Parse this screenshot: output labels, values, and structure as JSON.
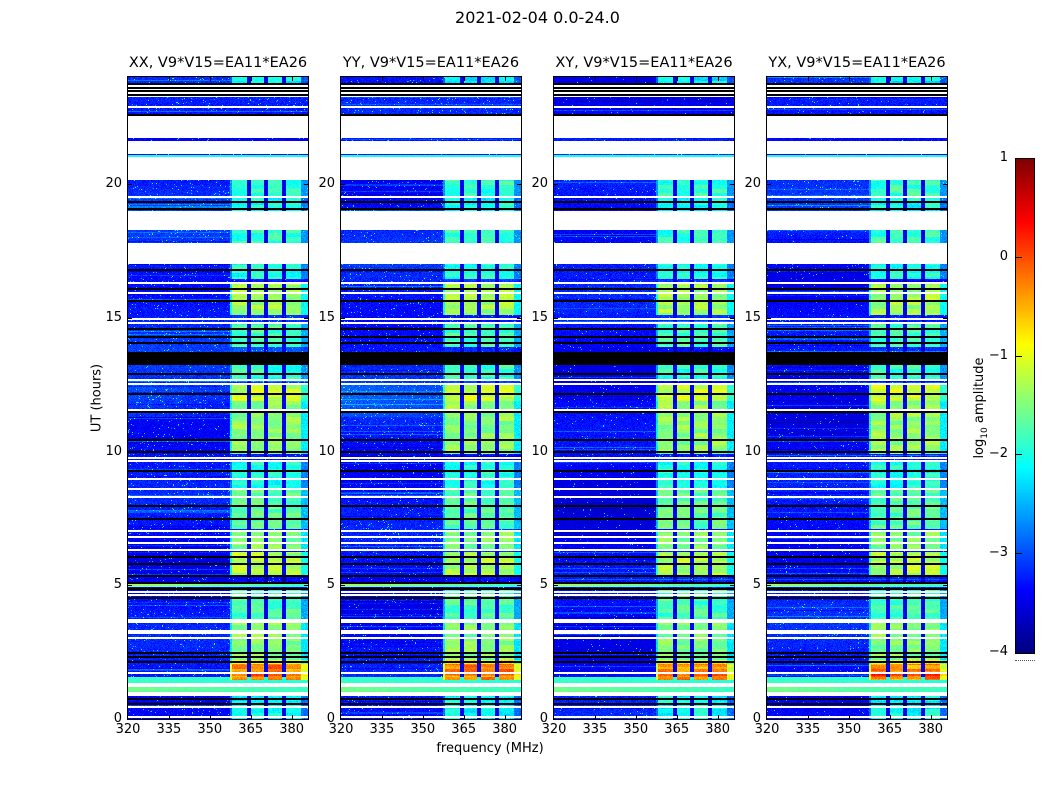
{
  "chart_data": {
    "type": "heatmap",
    "title": "2021-02-04 0.0-24.0",
    "xlabel": "frequency (MHz)",
    "ylabel": "UT (hours)",
    "x_range": [
      320,
      386
    ],
    "x_ticks": [
      320,
      335,
      350,
      365,
      380
    ],
    "y_range": [
      0,
      24
    ],
    "y_ticks": [
      20,
      15,
      10,
      5,
      0
    ],
    "grid": false,
    "colorbar": {
      "cmap": "jet",
      "vmin": -4,
      "vmax": 1,
      "ticks": [
        "1",
        "0",
        "−1",
        "−2",
        "−3",
        "−4"
      ],
      "tick_values": [
        1,
        0,
        -1,
        -2,
        -3,
        -4
      ],
      "label_log": "log",
      "label_sub": "10",
      "label_amp": " amplitude"
    },
    "panels": [
      {
        "id": "XX",
        "title": "XX, V9*V15=EA11*EA26",
        "seed": 11,
        "bg": -3.28,
        "speckle": 0.972,
        "patch_amp": 0.3
      },
      {
        "id": "YY",
        "title": "YY, V9*V15=EA11*EA26",
        "seed": 23,
        "bg": -3.3,
        "speckle": 0.974,
        "patch_amp": 0.25
      },
      {
        "id": "XY",
        "title": "XY, V9*V15=EA11*EA26",
        "seed": 37,
        "bg": -3.38,
        "speckle": 0.985,
        "patch_amp": 0.05
      },
      {
        "id": "YX",
        "title": "YX, V9*V15=EA11*EA26",
        "seed": 51,
        "bg": -3.34,
        "speckle": 0.982,
        "patch_amp": 0.1
      }
    ],
    "structure": {
      "comment_units": "all times in UT hours; frequencies in MHz; levels in log10 amplitude",
      "white_bands": [
        [
          23.25,
          23.7
        ],
        [
          21.72,
          22.58
        ],
        [
          21.12,
          21.6
        ],
        [
          20.15,
          21.0
        ],
        [
          18.28,
          19.0
        ],
        [
          17.0,
          17.8
        ],
        [
          12.49,
          12.56
        ],
        [
          12.64,
          12.71
        ],
        [
          3.59,
          3.74
        ],
        [
          3.18,
          3.33
        ],
        [
          1.2,
          1.35
        ],
        [
          0.86,
          1.01
        ]
      ],
      "white_lines": [
        22.9,
        19.54,
        16.35,
        15.95,
        15.0,
        14.85,
        11.6,
        9.8,
        9.7,
        9.0,
        8.65,
        8.35,
        7.05,
        6.85,
        6.6,
        6.35,
        4.78,
        4.66,
        3.05,
        1.76,
        0.5,
        0.12
      ],
      "black_band": [
        13.23,
        13.72
      ],
      "black_lines": [
        23.78,
        23.62,
        23.5,
        23.38,
        22.62,
        19.35,
        19.1,
        16.82,
        16.1,
        15.65,
        14.6,
        14.3,
        14.1,
        12.95,
        12.2,
        11.5,
        10.45,
        10.0,
        9.3,
        8.0,
        7.5,
        6.1,
        5.83,
        5.38,
        5.12,
        4.9,
        4.55,
        2.5,
        2.36,
        2.17,
        0.79,
        0.6
      ],
      "bright_rows": [
        [
          21.0,
          21.1,
          -2.0,
          0.0
        ],
        [
          4.92,
          5.1,
          -1.85,
          0.5
        ],
        [
          1.35,
          1.57,
          -1.95,
          0.1
        ],
        [
          1.01,
          1.2,
          -1.85,
          0.3
        ]
      ],
      "patch_band": [
        11.3,
        12.55
      ],
      "rfi": {
        "band": [
          357.5,
          384.5
        ],
        "stripes": [
          [
            358,
            363.5
          ],
          [
            365,
            370
          ],
          [
            371.5,
            376.5
          ],
          [
            378,
            383.5
          ]
        ],
        "gaps": [
          [
            363.5,
            365
          ],
          [
            370,
            371.5
          ],
          [
            376.5,
            378
          ]
        ],
        "intervals": [
          [
            23.75,
            24.0,
            -2.2
          ],
          [
            19.55,
            20.15,
            -1.9
          ],
          [
            19.0,
            19.48,
            -2.1
          ],
          [
            17.8,
            18.28,
            -1.9
          ],
          [
            16.45,
            17.0,
            -2.0
          ],
          [
            15.1,
            16.35,
            -1.35
          ],
          [
            13.9,
            14.75,
            -1.8
          ],
          [
            12.71,
            13.23,
            -1.9
          ],
          [
            11.9,
            12.55,
            -1.15
          ],
          [
            9.9,
            11.9,
            -1.45
          ],
          [
            8.6,
            9.6,
            -2.0
          ],
          [
            7.1,
            8.55,
            -1.7
          ],
          [
            6.3,
            7.0,
            -1.5
          ],
          [
            5.3,
            6.25,
            -1.3
          ],
          [
            3.74,
            4.9,
            -1.8
          ],
          [
            2.2,
            3.6,
            -1.5
          ],
          [
            2.05,
            2.2,
            -0.9
          ],
          [
            1.45,
            2.05,
            -0.45
          ],
          [
            0.0,
            1.2,
            -2.1
          ]
        ],
        "burst_red_rows": [
          1.6,
          1.72
        ]
      }
    }
  }
}
